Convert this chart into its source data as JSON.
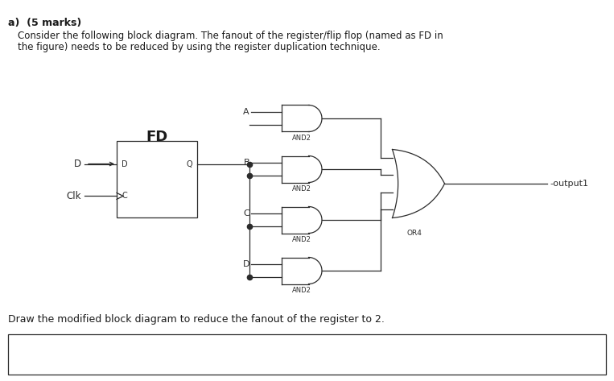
{
  "title_bold": "a)  (5 marks)",
  "text_line1": "Consider the following block diagram. The fanout of the register/flip flop (named as FD in",
  "text_line2": "the figure) needs to be reduced by using the register duplication technique.",
  "bottom_text": "Draw the modified block diagram to reduce the fanout of the register to 2.",
  "fd_label": "FD",
  "bg_color": "#ffffff",
  "line_color": "#2b2b2b",
  "font_color": "#1a1a1a",
  "gate_labels": [
    "AND2",
    "AND2",
    "AND2",
    "AND2"
  ],
  "or_label": "OR4",
  "output_label": "output1",
  "d_label": "D",
  "clk_label": "Clk",
  "port_d": "D",
  "port_q": "Q",
  "port_c": "C",
  "input_letters": [
    "A",
    "B",
    "C",
    "D"
  ],
  "fig_width": 7.63,
  "fig_height": 4.73,
  "dpi": 100
}
